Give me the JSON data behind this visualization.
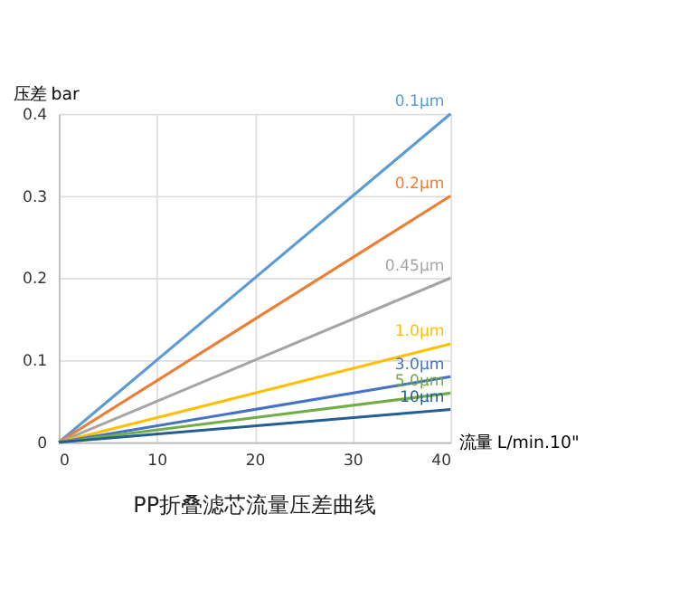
{
  "chart_data": {
    "type": "line",
    "title": "PP折叠滤芯流量压差曲线",
    "xlabel": "流量 L/min.10\"",
    "ylabel": "压差 bar",
    "xlim": [
      0,
      40
    ],
    "xticks": [
      0,
      10,
      20,
      30,
      40
    ],
    "ylim": [
      0,
      0.4
    ],
    "yticks": [
      0,
      0.1,
      0.2,
      0.3,
      0.4
    ],
    "grid": true,
    "legend": false,
    "marker": "none",
    "line_style": "solid",
    "x": [
      0,
      40
    ],
    "series": [
      {
        "name": "0.1μm",
        "color": "#5b9bd5",
        "values": [
          0,
          0.4
        ]
      },
      {
        "name": "0.2μm",
        "color": "#ed7d31",
        "values": [
          0,
          0.3
        ]
      },
      {
        "name": "0.45μm",
        "color": "#a5a5a5",
        "values": [
          0,
          0.2
        ]
      },
      {
        "name": "1.0μm",
        "color": "#ffc000",
        "values": [
          0,
          0.12
        ]
      },
      {
        "name": "3.0μm",
        "color": "#4472c4",
        "values": [
          0,
          0.08
        ]
      },
      {
        "name": "5.0μm",
        "color": "#70ad47",
        "values": [
          0,
          0.06
        ]
      },
      {
        "name": "10μm",
        "color": "#255e91",
        "values": [
          0,
          0.04
        ]
      }
    ]
  }
}
